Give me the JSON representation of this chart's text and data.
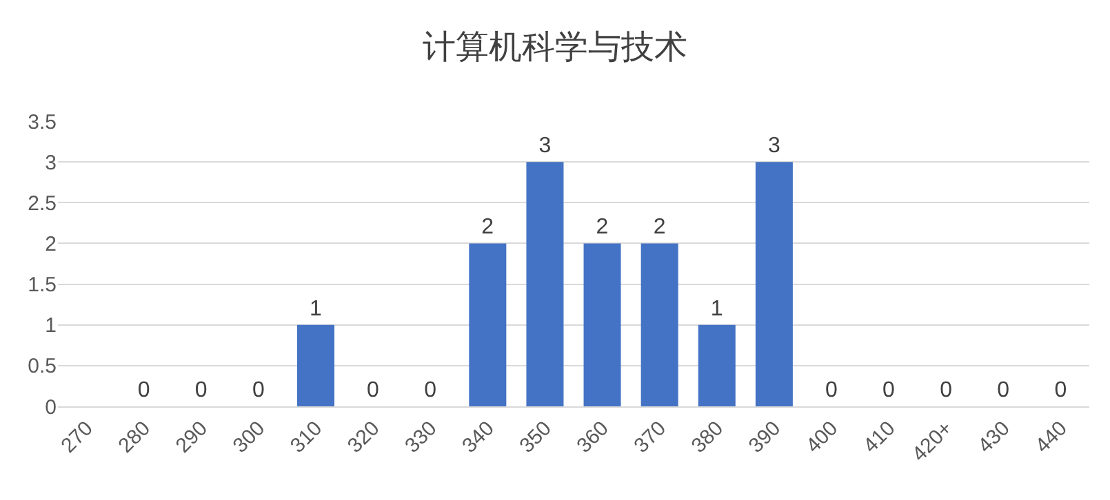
{
  "chart_data": {
    "type": "bar",
    "title": "计算机科学与技术",
    "categories": [
      "270",
      "280",
      "290",
      "300",
      "310",
      "320",
      "330",
      "340",
      "350",
      "360",
      "370",
      "380",
      "390",
      "400",
      "410",
      "420+",
      "430",
      "440"
    ],
    "values": [
      null,
      0,
      0,
      0,
      1,
      0,
      0,
      2,
      3,
      2,
      2,
      1,
      3,
      0,
      0,
      0,
      0,
      0
    ],
    "value_labels": [
      null,
      "0",
      "0",
      "0",
      "1",
      "0",
      "0",
      "2",
      "3",
      "2",
      "2",
      "1",
      "3",
      "0",
      "0",
      "0",
      "0",
      "0"
    ],
    "color": "#4472c4",
    "ylim": [
      0,
      3.5
    ],
    "yticks": [
      0,
      0.5,
      1,
      1.5,
      2,
      2.5,
      3,
      3.5
    ],
    "grid": "y"
  }
}
